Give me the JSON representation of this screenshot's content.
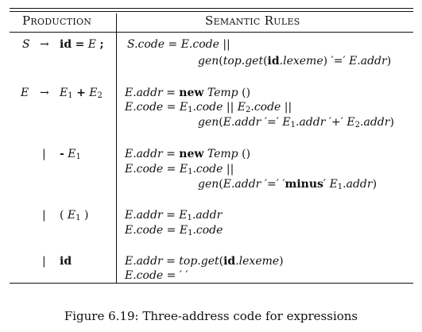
{
  "table": {
    "header_production": "Production",
    "header_rules": "Semantic Rules",
    "rows": [
      {
        "production": [
          "S",
          "→",
          "id = E ;"
        ],
        "rules": [
          "S.code = E.code ||",
          "gen(top.get(id.lexeme) '=' E.addr)"
        ]
      },
      {
        "production": [
          "E",
          "→",
          "E1 + E2"
        ],
        "rules": [
          "E.addr = new Temp ()",
          "E.code = E1.code || E2.code ||",
          "gen(E.addr '=' E1.addr '+' E2.addr)"
        ]
      },
      {
        "production": [
          "|",
          "- E1"
        ],
        "rules": [
          "E.addr = new Temp ()",
          "E.code = E1.code ||",
          "gen(E.addr '=' 'minus' E1.addr)"
        ]
      },
      {
        "production": [
          "|",
          "( E1 )"
        ],
        "rules": [
          "E.addr = E1.addr",
          "E.code = E1.code"
        ]
      },
      {
        "production": [
          "|",
          "id"
        ],
        "rules": [
          "E.addr = top.get(id.lexeme)",
          "E.code = ' '"
        ]
      }
    ]
  },
  "caption": "Figure 6.19: Three-address code for expressions"
}
